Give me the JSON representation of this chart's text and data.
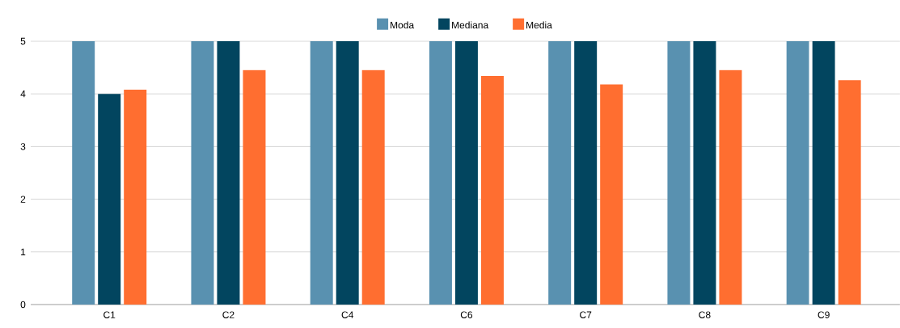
{
  "chart_data": {
    "type": "bar",
    "categories": [
      "C1",
      "C2",
      "C4",
      "C6",
      "C7",
      "C8",
      "C9"
    ],
    "series": [
      {
        "name": "Moda",
        "color": "#5991b0",
        "values": [
          5,
          5,
          5,
          5,
          5,
          5,
          5
        ]
      },
      {
        "name": "Mediana",
        "color": "#02455f",
        "values": [
          4,
          5,
          5,
          5,
          5,
          5,
          5
        ]
      },
      {
        "name": "Media",
        "color": "#ff6e30",
        "values": [
          4.08,
          4.45,
          4.45,
          4.34,
          4.18,
          4.45,
          4.26
        ]
      }
    ],
    "ylim": [
      0,
      5
    ],
    "yticks": [
      0,
      1,
      2,
      3,
      4,
      5
    ],
    "grid": "y",
    "legend": "top"
  }
}
